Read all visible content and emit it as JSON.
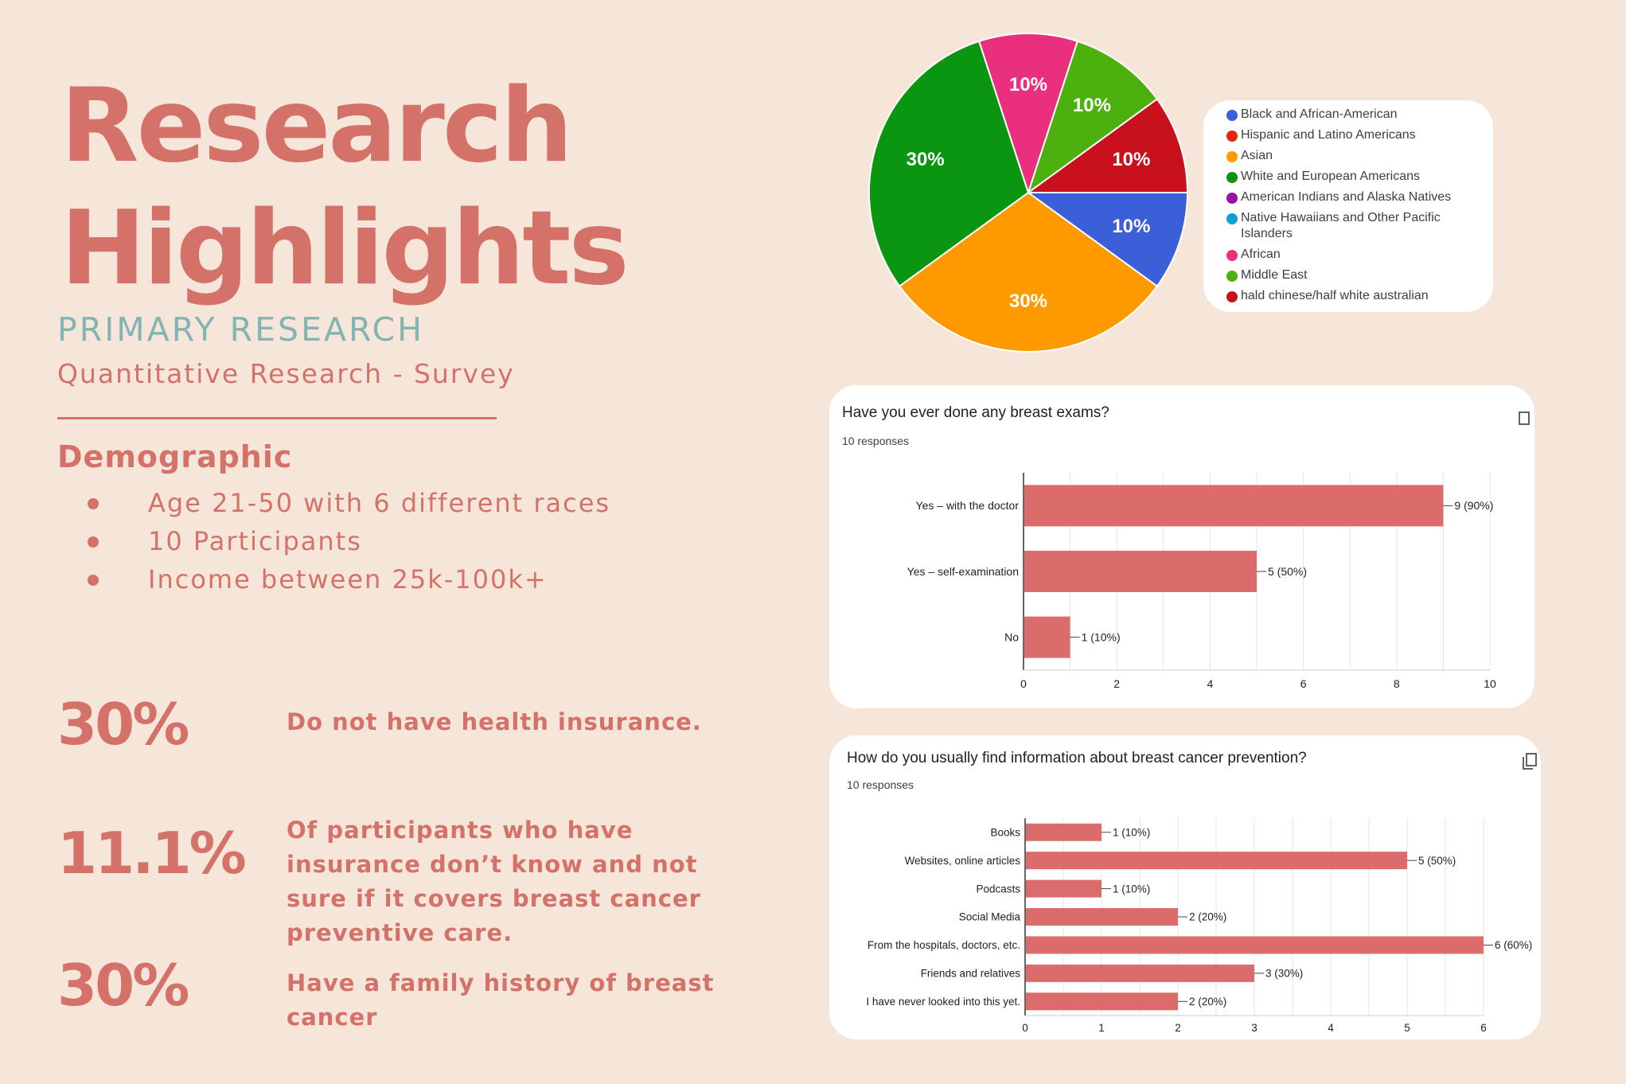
{
  "title_line1": "Research",
  "title_line2": "Highlights",
  "subtitle": "PRIMARY RESEARCH",
  "subsubtitle": "Quantitative Research - Survey",
  "demographic": {
    "heading": "Demographic",
    "items": [
      "Age 21-50 with 6 different races",
      "10 Participants",
      "Income between 25k-100k+"
    ]
  },
  "stats": [
    {
      "value": "30%",
      "text": "Do not have health insurance."
    },
    {
      "value": "11.1%",
      "text": "Of participants who have insurance don’t know and not sure if it covers breast cancer preventive care."
    },
    {
      "value": "30%",
      "text": "Have a family history of breast cancer"
    }
  ],
  "colors": {
    "accent": "#d4726a",
    "teal": "#84b3b3",
    "background": "#f6e6da",
    "bar": "#dc6b6b"
  },
  "chart_data": [
    {
      "type": "pie",
      "slices": [
        {
          "label": "Black and African-American",
          "value": 10,
          "color": "#3b5fd9"
        },
        {
          "label": "Asian",
          "value": 30,
          "color": "#ff9900"
        },
        {
          "label": "White and European Americans",
          "value": 30,
          "color": "#0a9610"
        },
        {
          "label": "African",
          "value": 10,
          "color": "#ea2f7f"
        },
        {
          "label": "Middle East",
          "value": 10,
          "color": "#4cb00e"
        },
        {
          "label": "hald chinese/half white australian",
          "value": 10,
          "color": "#c9111e"
        }
      ],
      "legend": [
        {
          "label": "Black and African-American",
          "color": "#3b5fd9"
        },
        {
          "label": "Hispanic and Latino Americans",
          "color": "#e8220e"
        },
        {
          "label": "Asian",
          "color": "#ff9900"
        },
        {
          "label": "White and European Americans",
          "color": "#0a9610"
        },
        {
          "label": "American Indians and Alaska Natives",
          "color": "#9c0fa8"
        },
        {
          "label": "Native Hawaiians and Other Pacific Islanders",
          "color": "#0f9fd6"
        },
        {
          "label": "African",
          "color": "#ea2f7f"
        },
        {
          "label": "Middle East",
          "color": "#4cb00e"
        },
        {
          "label": "hald chinese/half white australian",
          "color": "#c9111e"
        }
      ],
      "legend_position": "right"
    },
    {
      "type": "bar",
      "orientation": "horizontal",
      "title": "Have you ever done any breast exams?",
      "subtitle": "10 responses",
      "categories": [
        "Yes – with the doctor",
        "Yes – self-examination",
        "No"
      ],
      "values": [
        9,
        5,
        1
      ],
      "data_labels": [
        "9 (90%)",
        "5 (50%)",
        "1 (10%)"
      ],
      "xlim": [
        0,
        10
      ],
      "xticks": [
        0,
        2,
        4,
        6,
        8,
        10
      ],
      "grid": true
    },
    {
      "type": "bar",
      "orientation": "horizontal",
      "title": "How do you usually find information about breast cancer prevention?",
      "subtitle": "10 responses",
      "categories": [
        "Books",
        "Websites, online articles",
        "Podcasts",
        "Social Media",
        "From the hospitals, doctors, etc.",
        "Friends and relatives",
        "I have never looked into this yet."
      ],
      "values": [
        1,
        5,
        1,
        2,
        6,
        3,
        2
      ],
      "data_labels": [
        "1 (10%)",
        "5 (50%)",
        "1 (10%)",
        "2 (20%)",
        "6 (60%)",
        "3 (30%)",
        "2 (20%)"
      ],
      "xlim": [
        0,
        6
      ],
      "xticks": [
        0,
        1,
        2,
        3,
        4,
        5,
        6
      ],
      "grid": true
    }
  ]
}
